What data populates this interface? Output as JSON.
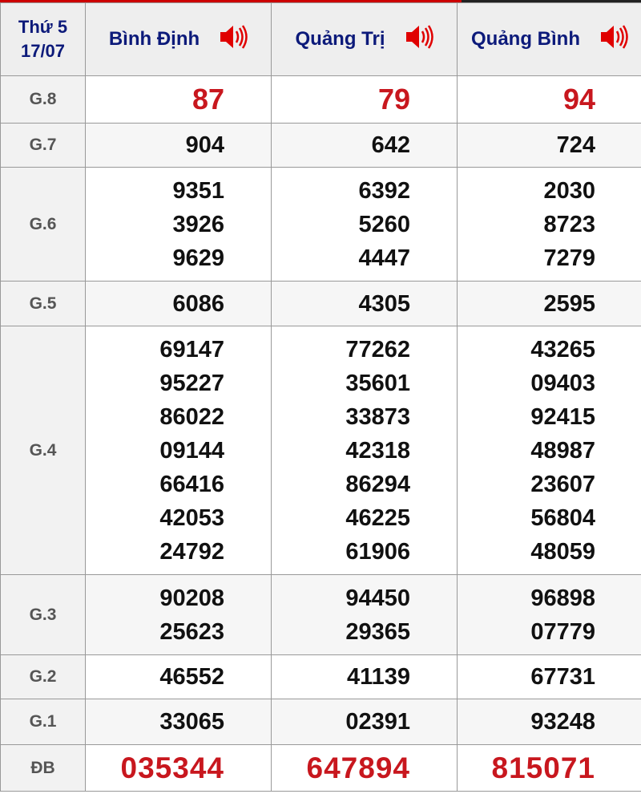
{
  "header": {
    "day": "Thứ 5",
    "date": "17/07",
    "provinces": [
      "Bình Định",
      "Quảng Trị",
      "Quảng Bình"
    ],
    "speaker_icon": "speaker-icon",
    "speaker_color": "#e00000"
  },
  "colors": {
    "title": "#0c1a7a",
    "prize_red": "#c8171e"
  },
  "rows": [
    {
      "label": "G.8",
      "values": [
        [
          "87"
        ],
        [
          "79"
        ],
        [
          "94"
        ]
      ]
    },
    {
      "label": "G.7",
      "values": [
        [
          "904"
        ],
        [
          "642"
        ],
        [
          "724"
        ]
      ]
    },
    {
      "label": "G.6",
      "values": [
        [
          "9351",
          "3926",
          "9629"
        ],
        [
          "6392",
          "5260",
          "4447"
        ],
        [
          "2030",
          "8723",
          "7279"
        ]
      ]
    },
    {
      "label": "G.5",
      "values": [
        [
          "6086"
        ],
        [
          "4305"
        ],
        [
          "2595"
        ]
      ]
    },
    {
      "label": "G.4",
      "values": [
        [
          "69147",
          "95227",
          "86022",
          "09144",
          "66416",
          "42053",
          "24792"
        ],
        [
          "77262",
          "35601",
          "33873",
          "42318",
          "86294",
          "46225",
          "61906"
        ],
        [
          "43265",
          "09403",
          "92415",
          "48987",
          "23607",
          "56804",
          "48059"
        ]
      ]
    },
    {
      "label": "G.3",
      "values": [
        [
          "90208",
          "25623"
        ],
        [
          "94450",
          "29365"
        ],
        [
          "96898",
          "07779"
        ]
      ]
    },
    {
      "label": "G.2",
      "values": [
        [
          "46552"
        ],
        [
          "41139"
        ],
        [
          "67731"
        ]
      ]
    },
    {
      "label": "G.1",
      "values": [
        [
          "33065"
        ],
        [
          "02391"
        ],
        [
          "93248"
        ]
      ]
    },
    {
      "label": "ĐB",
      "values": [
        [
          "035344"
        ],
        [
          "647894"
        ],
        [
          "815071"
        ]
      ]
    }
  ]
}
